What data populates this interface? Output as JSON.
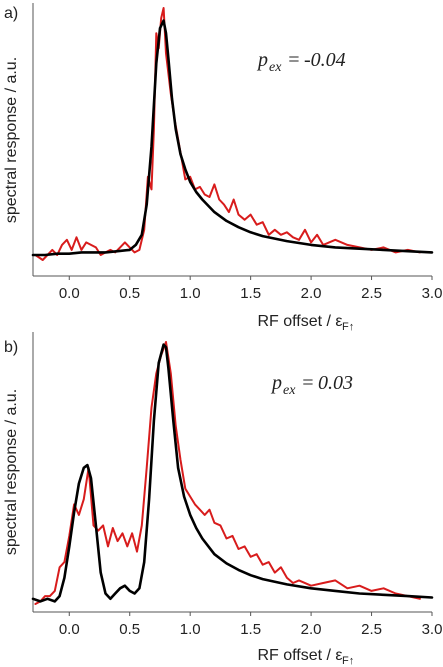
{
  "chart_data": [
    {
      "type": "line",
      "panel_label": "a)",
      "xlabel": "RF offset / ε",
      "xlabel_sub": "F↑",
      "ylabel": "spectral response / a.u.",
      "xlim": [
        -0.3,
        3.0
      ],
      "ylim": [
        0,
        1.0
      ],
      "xticks": [
        "0.0",
        "0.5",
        "1.0",
        "1.5",
        "2.0",
        "2.5",
        "3.0"
      ],
      "xtick_values": [
        0.0,
        0.5,
        1.0,
        1.5,
        2.0,
        2.5,
        3.0
      ],
      "annotation": {
        "p": "p",
        "sub": "ex",
        "eq": "= ",
        "value": "-0.04"
      },
      "grid": false,
      "series": [
        {
          "color": "#d81c1c",
          "x": [
            -0.28,
            -0.22,
            -0.18,
            -0.14,
            -0.1,
            -0.06,
            -0.02,
            0.02,
            0.06,
            0.1,
            0.14,
            0.18,
            0.22,
            0.26,
            0.3,
            0.34,
            0.38,
            0.42,
            0.46,
            0.5,
            0.54,
            0.58,
            0.62,
            0.65,
            0.68,
            0.7,
            0.72,
            0.74,
            0.76,
            0.78,
            0.8,
            0.82,
            0.84,
            0.87,
            0.9,
            0.93,
            0.96,
            1.0,
            1.04,
            1.08,
            1.12,
            1.16,
            1.2,
            1.24,
            1.28,
            1.32,
            1.36,
            1.4,
            1.45,
            1.5,
            1.55,
            1.6,
            1.65,
            1.7,
            1.75,
            1.8,
            1.85,
            1.9,
            1.95,
            2.0,
            2.05,
            2.1,
            2.2,
            2.3,
            2.4,
            2.5,
            2.6,
            2.7,
            2.8,
            2.9
          ],
          "y": [
            0.02,
            0.0,
            0.02,
            0.04,
            0.02,
            0.06,
            0.08,
            0.04,
            0.09,
            0.04,
            0.07,
            0.06,
            0.05,
            0.02,
            0.03,
            0.04,
            0.03,
            0.05,
            0.07,
            0.05,
            0.03,
            0.04,
            0.12,
            0.33,
            0.28,
            0.52,
            0.9,
            0.84,
            0.96,
            1.0,
            0.82,
            0.74,
            0.66,
            0.56,
            0.48,
            0.4,
            0.32,
            0.33,
            0.28,
            0.29,
            0.26,
            0.25,
            0.3,
            0.24,
            0.22,
            0.19,
            0.24,
            0.18,
            0.16,
            0.18,
            0.14,
            0.15,
            0.1,
            0.12,
            0.1,
            0.11,
            0.09,
            0.08,
            0.12,
            0.07,
            0.1,
            0.06,
            0.08,
            0.06,
            0.05,
            0.04,
            0.05,
            0.03,
            0.04,
            0.03
          ]
        },
        {
          "color": "#000000",
          "x": [
            -0.3,
            -0.2,
            -0.1,
            0.0,
            0.1,
            0.2,
            0.3,
            0.4,
            0.5,
            0.55,
            0.6,
            0.64,
            0.68,
            0.72,
            0.75,
            0.78,
            0.8,
            0.82,
            0.85,
            0.88,
            0.92,
            0.96,
            1.0,
            1.05,
            1.1,
            1.2,
            1.3,
            1.4,
            1.5,
            1.6,
            1.8,
            2.0,
            2.2,
            2.4,
            2.6,
            2.8,
            3.0
          ],
          "y": [
            0.02,
            0.02,
            0.025,
            0.025,
            0.03,
            0.03,
            0.03,
            0.035,
            0.04,
            0.06,
            0.1,
            0.22,
            0.45,
            0.78,
            0.92,
            0.95,
            0.9,
            0.8,
            0.64,
            0.52,
            0.42,
            0.36,
            0.31,
            0.27,
            0.24,
            0.19,
            0.155,
            0.13,
            0.11,
            0.095,
            0.075,
            0.06,
            0.05,
            0.045,
            0.04,
            0.035,
            0.03
          ]
        }
      ]
    },
    {
      "type": "line",
      "panel_label": "b)",
      "xlabel": "RF offset / ε",
      "xlabel_sub": "F↑",
      "ylabel": "spectral response / a.u.",
      "xlim": [
        -0.3,
        3.0
      ],
      "ylim": [
        0,
        1.0
      ],
      "xticks": [
        "0.0",
        "0.5",
        "1.0",
        "1.5",
        "2.0",
        "2.5",
        "3.0"
      ],
      "xtick_values": [
        0.0,
        0.5,
        1.0,
        1.5,
        2.0,
        2.5,
        3.0
      ],
      "annotation": {
        "p": "p",
        "sub": "ex",
        "eq": "= ",
        "value": "0.03"
      },
      "grid": false,
      "series": [
        {
          "color": "#d81c1c",
          "x": [
            -0.28,
            -0.24,
            -0.2,
            -0.16,
            -0.12,
            -0.08,
            -0.04,
            0.0,
            0.04,
            0.08,
            0.12,
            0.16,
            0.2,
            0.24,
            0.28,
            0.32,
            0.36,
            0.4,
            0.44,
            0.48,
            0.52,
            0.56,
            0.6,
            0.64,
            0.68,
            0.72,
            0.76,
            0.8,
            0.84,
            0.88,
            0.92,
            0.96,
            1.0,
            1.04,
            1.08,
            1.12,
            1.16,
            1.2,
            1.25,
            1.3,
            1.35,
            1.4,
            1.45,
            1.5,
            1.55,
            1.6,
            1.65,
            1.7,
            1.75,
            1.8,
            1.85,
            1.9,
            2.0,
            2.1,
            2.2,
            2.3,
            2.4,
            2.5,
            2.6,
            2.7,
            2.8,
            2.9
          ],
          "y": [
            0.0,
            0.01,
            0.03,
            0.03,
            0.05,
            0.14,
            0.16,
            0.26,
            0.38,
            0.34,
            0.4,
            0.52,
            0.3,
            0.28,
            0.3,
            0.22,
            0.29,
            0.24,
            0.27,
            0.22,
            0.27,
            0.2,
            0.3,
            0.52,
            0.75,
            0.88,
            0.95,
            1.0,
            0.88,
            0.68,
            0.55,
            0.44,
            0.41,
            0.38,
            0.36,
            0.34,
            0.36,
            0.31,
            0.3,
            0.25,
            0.26,
            0.21,
            0.22,
            0.18,
            0.19,
            0.15,
            0.16,
            0.12,
            0.14,
            0.1,
            0.08,
            0.09,
            0.07,
            0.08,
            0.09,
            0.06,
            0.07,
            0.05,
            0.06,
            0.04,
            0.03,
            0.02
          ]
        },
        {
          "color": "#000000",
          "x": [
            -0.3,
            -0.24,
            -0.18,
            -0.12,
            -0.08,
            -0.04,
            0.0,
            0.04,
            0.08,
            0.12,
            0.15,
            0.18,
            0.22,
            0.26,
            0.3,
            0.34,
            0.38,
            0.42,
            0.46,
            0.5,
            0.54,
            0.58,
            0.62,
            0.66,
            0.7,
            0.74,
            0.78,
            0.8,
            0.82,
            0.86,
            0.9,
            0.95,
            1.0,
            1.05,
            1.1,
            1.2,
            1.3,
            1.4,
            1.5,
            1.6,
            1.8,
            2.0,
            2.2,
            2.4,
            2.6,
            2.8,
            3.0
          ],
          "y": [
            0.02,
            0.01,
            0.02,
            0.01,
            0.03,
            0.1,
            0.22,
            0.35,
            0.46,
            0.52,
            0.53,
            0.48,
            0.3,
            0.12,
            0.04,
            0.02,
            0.04,
            0.06,
            0.07,
            0.05,
            0.04,
            0.06,
            0.16,
            0.4,
            0.7,
            0.92,
            0.99,
            0.98,
            0.9,
            0.7,
            0.52,
            0.41,
            0.34,
            0.29,
            0.25,
            0.19,
            0.155,
            0.13,
            0.11,
            0.095,
            0.075,
            0.06,
            0.05,
            0.04,
            0.035,
            0.03,
            0.025
          ]
        }
      ]
    }
  ]
}
